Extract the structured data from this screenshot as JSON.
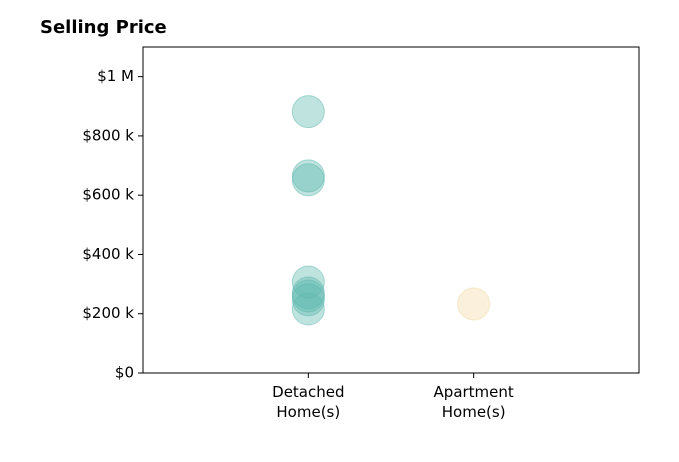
{
  "chart_data": {
    "type": "scatter",
    "title": "Selling Price",
    "categories": [
      "Detached\nHome(s)",
      "Apartment\nHome(s)"
    ],
    "series": [
      {
        "color": "#5fb8ae",
        "values": [
          882000,
          665000,
          652000,
          307000,
          270000,
          260000,
          247000,
          216000
        ]
      },
      {
        "color": "#f2d9a6",
        "values": [
          233000
        ]
      }
    ],
    "ylim": [
      0,
      1100000
    ],
    "yticks": [
      {
        "value": 0,
        "label": "$0"
      },
      {
        "value": 200000,
        "label": "$200 k"
      },
      {
        "value": 400000,
        "label": "$400 k"
      },
      {
        "value": 600000,
        "label": "$600 k"
      },
      {
        "value": 800000,
        "label": "$800 k"
      },
      {
        "value": 1000000,
        "label": "$1 M"
      }
    ]
  }
}
